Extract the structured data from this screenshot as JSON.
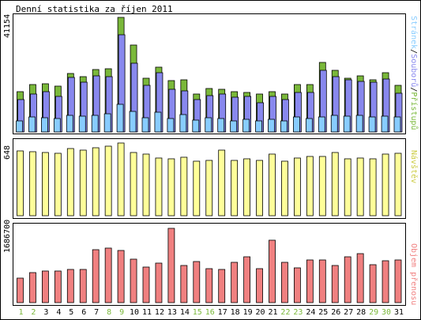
{
  "chart_data": {
    "type": "bar",
    "title": "Denní statistika za říjen 2011",
    "categories": [
      "1",
      "2",
      "3",
      "4",
      "5",
      "6",
      "7",
      "8",
      "9",
      "10",
      "11",
      "12",
      "13",
      "14",
      "15",
      "16",
      "17",
      "18",
      "19",
      "20",
      "21",
      "22",
      "23",
      "24",
      "25",
      "26",
      "27",
      "28",
      "29",
      "30",
      "31"
    ],
    "weekend_days": [
      "1",
      "2",
      "8",
      "9",
      "15",
      "16",
      "22",
      "23",
      "29",
      "30"
    ],
    "panels": [
      {
        "id": "traffic",
        "ymax_label": "41154",
        "ymax": 41154,
        "side_label": {
          "parts": [
            "Stránek",
            "Souborů",
            "Přístupů"
          ],
          "separator": "/"
        },
        "series": [
          {
            "name": "Přístupů",
            "color": "#7ab83a",
            "values": [
              14400,
              16900,
              17300,
              16500,
              20900,
              20000,
              22400,
              22600,
              41154,
              31200,
              19300,
              23300,
              18500,
              18800,
              13700,
              15700,
              15400,
              14600,
              14300,
              13500,
              14500,
              13500,
              16900,
              16900,
              25000,
              22000,
              19300,
              20100,
              18800,
              21300,
              16700
            ]
          },
          {
            "name": "Souborů",
            "color": "#8888ee",
            "values": [
              11500,
              13700,
              14600,
              12700,
              19500,
              18000,
              20100,
              19900,
              34800,
              24700,
              16700,
              21300,
              15200,
              14700,
              11700,
              13100,
              13700,
              12500,
              12900,
              10500,
              12700,
              11500,
              14100,
              14100,
              22200,
              19800,
              18700,
              18100,
              17800,
              18900,
              13900
            ]
          },
          {
            "name": "Stránek",
            "color": "#88ccff",
            "values": [
              4100,
              5500,
              5000,
              4700,
              5900,
              5700,
              5900,
              6500,
              9800,
              7400,
              5200,
              7200,
              4800,
              6200,
              4300,
              5000,
              4800,
              4000,
              4500,
              4000,
              4600,
              4000,
              5400,
              4700,
              5500,
              6100,
              5600,
              6100,
              5400,
              5700,
              5300
            ]
          }
        ]
      },
      {
        "id": "visits",
        "ymax_label": "648",
        "ymax": 648,
        "side_label": {
          "parts": [
            "Návštěv"
          ],
          "separator": ""
        },
        "series": [
          {
            "name": "Návštěv",
            "color": "#ffff99",
            "values": [
              575,
              570,
              565,
              555,
              598,
              585,
              604,
              622,
              648,
              562,
              550,
              514,
              508,
              518,
              484,
              494,
              586,
              493,
              505,
              490,
              550,
              487,
              514,
              528,
              527,
              560,
              510,
              513,
              508,
              550,
              555
            ]
          }
        ]
      },
      {
        "id": "bytes",
        "ymax_label": "1686700",
        "ymax": 1686700,
        "side_label": {
          "parts": [
            "Objem přenosu"
          ],
          "separator": ""
        },
        "series": [
          {
            "name": "Objem přenosu",
            "color": "#f08080",
            "values": [
              550000,
              685000,
              710000,
              725000,
              745000,
              750000,
              1210000,
              1230000,
              1190000,
              995000,
              810000,
              905000,
              1686700,
              850000,
              925000,
              765000,
              755000,
              915000,
              1045000,
              765000,
              1420000,
              910000,
              790000,
              975000,
              960000,
              850000,
              1040000,
              1115000,
              870000,
              945000,
              960000
            ]
          }
        ]
      }
    ],
    "colors": {
      "frame": "#000000",
      "weekday_label": "#000000",
      "weekend_label": "#7ab83a",
      "visits_label": "#cccc44",
      "bytes_label": "#f08080"
    }
  }
}
